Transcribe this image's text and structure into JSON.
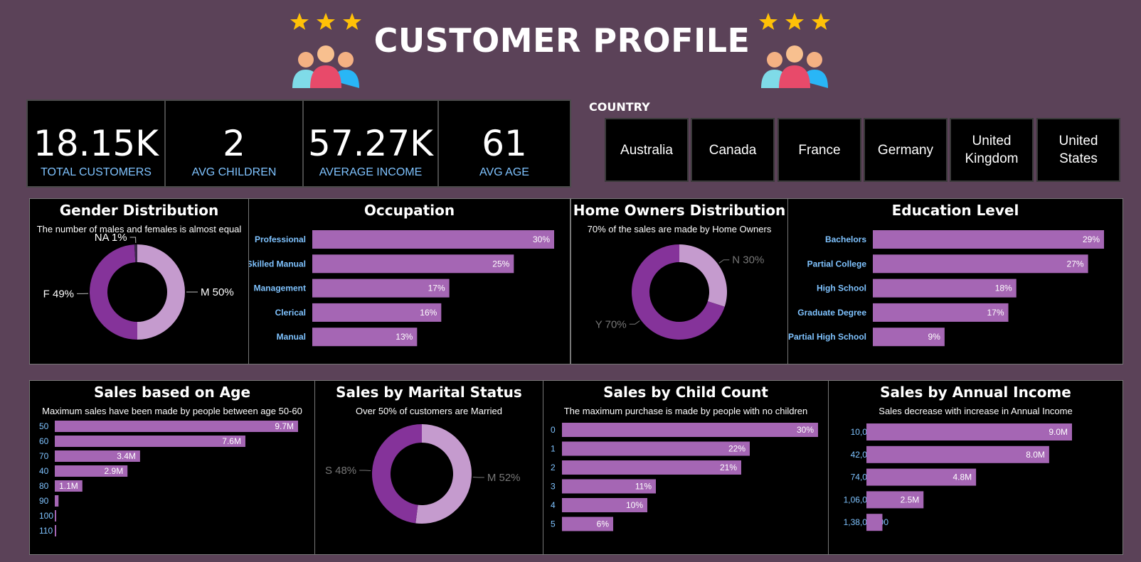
{
  "header": {
    "title": "CUSTOMER PROFILE"
  },
  "colors": {
    "background": "#5b4258",
    "bar": "#a566b4",
    "donut_dark": "#85339a",
    "donut_light": "#c59bce",
    "label_blue": "#7fc3ff"
  },
  "icons": [
    "three-stars-icon",
    "people-group-icon"
  ],
  "kpis": [
    {
      "value": "18.15K",
      "label": "TOTAL CUSTOMERS"
    },
    {
      "value": "2",
      "label": "AVG CHILDREN"
    },
    {
      "value": "57.27K",
      "label": "AVERAGE INCOME"
    },
    {
      "value": "61",
      "label": "AVG AGE"
    }
  ],
  "country": {
    "label": "COUNTRY",
    "options": [
      "Australia",
      "Canada",
      "France",
      "Germany",
      "United Kingdom",
      "United States"
    ]
  },
  "chart_data": [
    {
      "type": "pie",
      "title": "Gender Distribution",
      "subtitle": "The number of males and females is almost equal",
      "labels": [
        "M",
        "F",
        "NA"
      ],
      "values": [
        50,
        49,
        1
      ],
      "value_suffix": "%"
    },
    {
      "type": "bar",
      "orientation": "horizontal",
      "title": "Occupation",
      "categories": [
        "Professional",
        "Skilled Manual",
        "Management",
        "Clerical",
        "Manual"
      ],
      "values": [
        30,
        25,
        17,
        16,
        13
      ],
      "value_suffix": "%"
    },
    {
      "type": "pie",
      "title": "Home Owners Distribution",
      "subtitle": "70% of the sales are made by Home Owners",
      "labels": [
        "N",
        "Y"
      ],
      "values": [
        30,
        70
      ],
      "value_suffix": "%"
    },
    {
      "type": "bar",
      "orientation": "horizontal",
      "title": "Education Level",
      "categories": [
        "Bachelors",
        "Partial College",
        "High School",
        "Graduate Degree",
        "Partial High School"
      ],
      "values": [
        29,
        27,
        18,
        17,
        9
      ],
      "value_suffix": "%"
    },
    {
      "type": "bar",
      "orientation": "horizontal",
      "title": "Sales based on Age",
      "subtitle": "Maximum sales have been made by people between age 50-60",
      "categories": [
        "50",
        "60",
        "70",
        "40",
        "80",
        "90",
        "100",
        "110"
      ],
      "values": [
        9.7,
        7.6,
        3.4,
        2.9,
        1.1,
        0.15,
        0.05,
        0.02
      ],
      "data_labels": [
        "9.7M",
        "7.6M",
        "3.4M",
        "2.9M",
        "1.1M",
        "",
        "",
        ""
      ],
      "unit": "M"
    },
    {
      "type": "pie",
      "title": "Sales by Marital Status",
      "subtitle": "Over 50% of customers are Married",
      "labels": [
        "M",
        "S"
      ],
      "values": [
        52,
        48
      ],
      "value_suffix": "%"
    },
    {
      "type": "bar",
      "orientation": "horizontal",
      "title": "Sales by Child Count",
      "subtitle": "The maximum purchase is made by people with no children",
      "categories": [
        "0",
        "1",
        "2",
        "3",
        "4",
        "5"
      ],
      "values": [
        30,
        22,
        21,
        11,
        10,
        6
      ],
      "value_suffix": "%"
    },
    {
      "type": "bar",
      "orientation": "horizontal",
      "title": "Sales by Annual Income",
      "subtitle": "Sales decrease with increase in Annual Income",
      "categories": [
        "10,000.00",
        "42,000.00",
        "74,000.00",
        "1,06,000.00",
        "1,38,000.00"
      ],
      "values": [
        9.0,
        8.0,
        4.8,
        2.5,
        0.7
      ],
      "data_labels": [
        "9.0M",
        "8.0M",
        "4.8M",
        "2.5M",
        ""
      ],
      "unit": "M"
    }
  ]
}
